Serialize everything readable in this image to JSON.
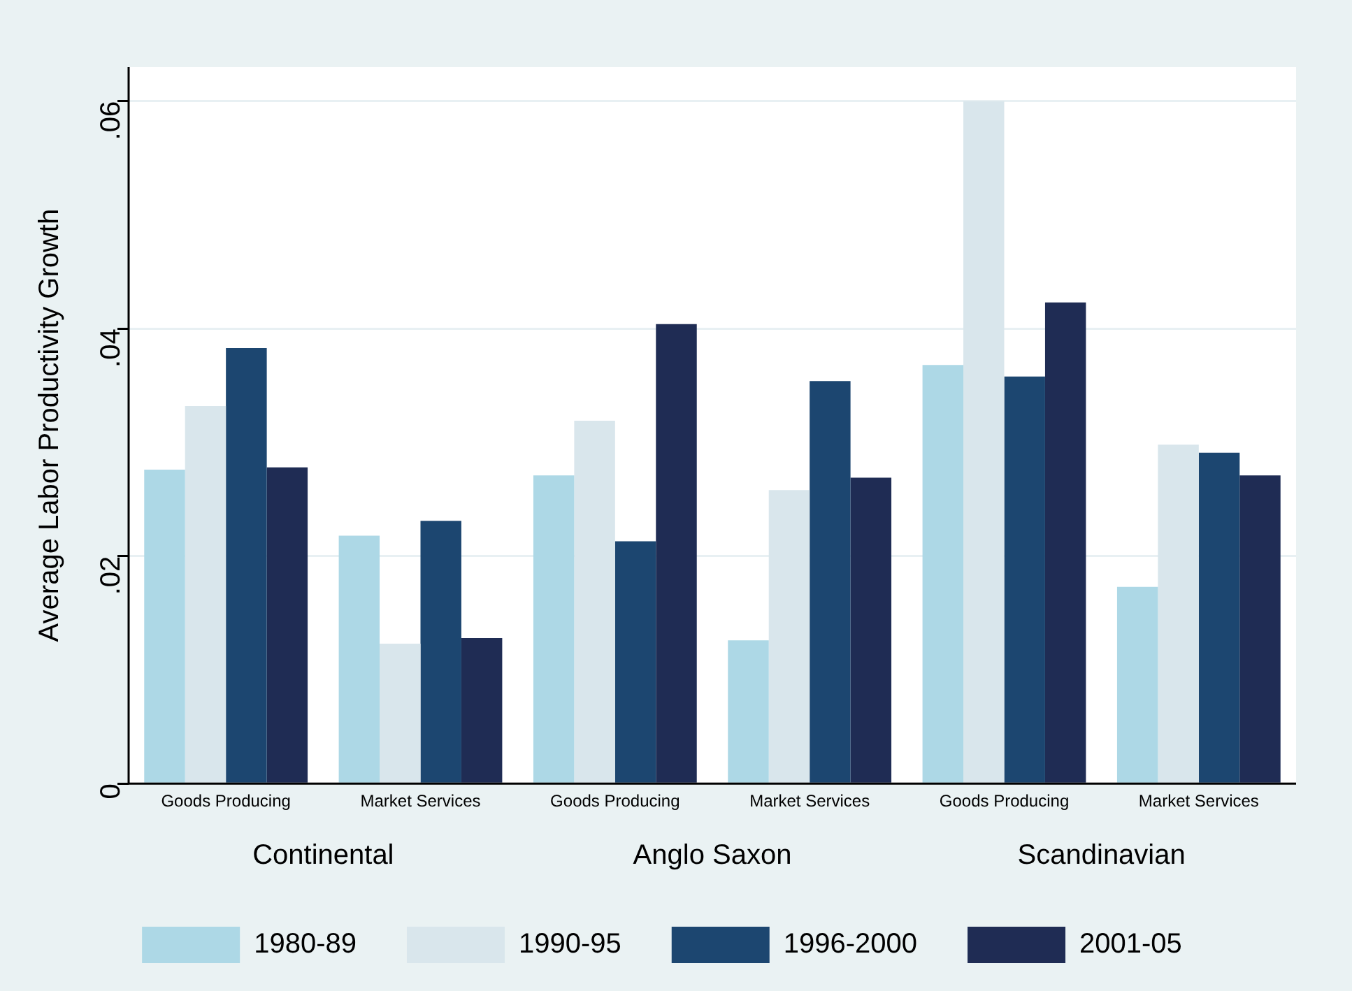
{
  "chart_data": {
    "type": "bar",
    "ylabel": "Average Labor Productivity Growth",
    "categories": [
      "Goods Producing",
      "Market Services",
      "Goods Producing",
      "Market Services",
      "Goods Producing",
      "Market Services"
    ],
    "series": [
      {
        "name": "1980-89",
        "color": "#add8e6",
        "values": [
          0.0276,
          0.0218,
          0.0271,
          0.0126,
          0.0368,
          0.0173
        ]
      },
      {
        "name": "1990-95",
        "color": "#d9e6ec",
        "values": [
          0.0332,
          0.0123,
          0.0319,
          0.0258,
          0.06,
          0.0298
        ]
      },
      {
        "name": "1996-2000",
        "color": "#1c4670",
        "values": [
          0.0383,
          0.0231,
          0.0213,
          0.0354,
          0.0358,
          0.0291
        ]
      },
      {
        "name": "2001-05",
        "color": "#1f2c54",
        "values": [
          0.0278,
          0.0128,
          0.0404,
          0.0269,
          0.0423,
          0.0271
        ]
      }
    ],
    "annotations": [
      "Continental",
      "Anglo Saxon",
      "Scandinavian"
    ],
    "ylim": [
      0,
      0.063
    ],
    "yticks": [
      0,
      {
        "value": 0.02,
        "label": ".02"
      },
      {
        "value": 0.04,
        "label": ".04"
      },
      {
        "value": 0.06,
        "label": ".06"
      }
    ],
    "grid": "y",
    "legend": "bottom"
  }
}
